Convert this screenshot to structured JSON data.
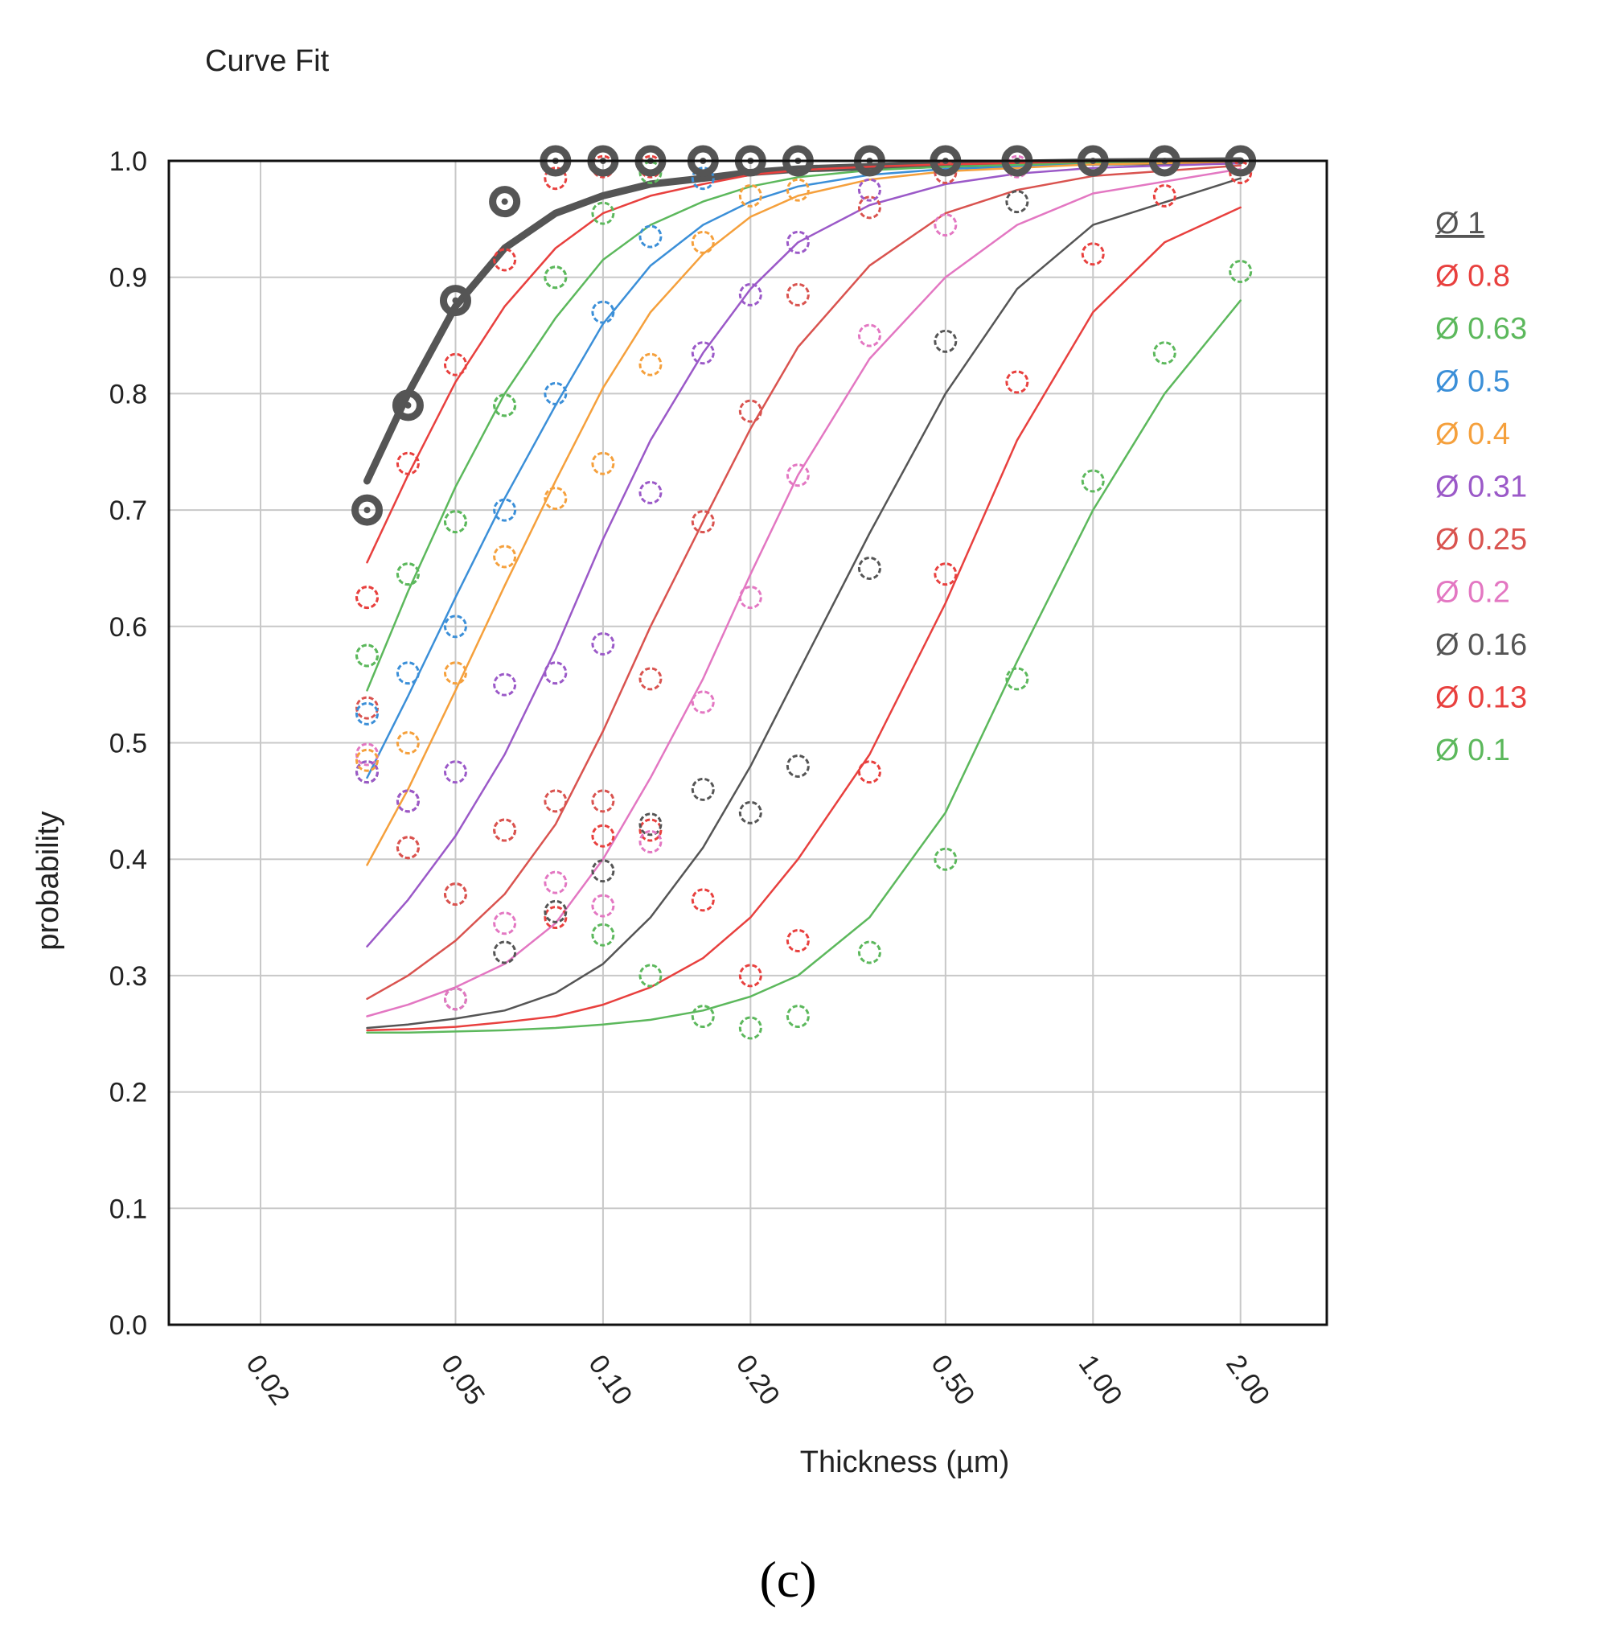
{
  "chart_data": {
    "type": "scatter",
    "title": "Curve Fit",
    "xlabel": "Thickness (µm)",
    "ylabel": "probability",
    "x_scale": "log",
    "xlim": [
      0.013,
      3.0
    ],
    "ylim": [
      0.0,
      1.0
    ],
    "grid": true,
    "legend_position": "right",
    "x_ticks": [
      {
        "value": 0.02,
        "label": "0.02"
      },
      {
        "value": 0.05,
        "label": "0.05"
      },
      {
        "value": 0.1,
        "label": "0.10"
      },
      {
        "value": 0.2,
        "label": "0.20"
      },
      {
        "value": 0.5,
        "label": "0.50"
      },
      {
        "value": 1.0,
        "label": "1.00"
      },
      {
        "value": 2.0,
        "label": "2.00"
      }
    ],
    "y_ticks": [
      {
        "value": 0.0,
        "label": "0.0"
      },
      {
        "value": 0.1,
        "label": "0.1"
      },
      {
        "value": 0.2,
        "label": "0.2"
      },
      {
        "value": 0.3,
        "label": "0.3"
      },
      {
        "value": 0.4,
        "label": "0.4"
      },
      {
        "value": 0.5,
        "label": "0.5"
      },
      {
        "value": 0.6,
        "label": "0.6"
      },
      {
        "value": 0.7,
        "label": "0.7"
      },
      {
        "value": 0.8,
        "label": "0.8"
      },
      {
        "value": 0.9,
        "label": "0.9"
      },
      {
        "value": 1.0,
        "label": "1.0"
      }
    ],
    "series": [
      {
        "name": "Ø 1",
        "color": "#555555",
        "bold": true,
        "x": [
          0.033,
          0.04,
          0.05,
          0.063,
          0.08,
          0.1,
          0.125,
          0.16,
          0.2,
          0.25,
          0.35,
          0.5,
          0.7,
          1.0,
          1.4,
          2.0
        ],
        "y": [
          0.7,
          0.79,
          0.88,
          0.965,
          1.0,
          1.0,
          1.0,
          1.0,
          1.0,
          1.0,
          1.0,
          1.0,
          1.0,
          1.0,
          1.0,
          1.0
        ],
        "fit_x": [
          0.033,
          0.04,
          0.05,
          0.063,
          0.08,
          0.1,
          0.125,
          0.16,
          0.2,
          0.25,
          0.35,
          0.5,
          0.7,
          1.0,
          2.0
        ],
        "fit_y": [
          0.725,
          0.8,
          0.875,
          0.925,
          0.955,
          0.97,
          0.98,
          0.985,
          0.99,
          0.993,
          0.995,
          0.997,
          0.998,
          0.999,
          1.0
        ]
      },
      {
        "name": "Ø 0.8",
        "color": "#e8403e",
        "x": [
          0.033,
          0.04,
          0.05,
          0.063,
          0.08,
          0.1,
          0.125,
          0.16,
          0.2,
          0.25,
          0.35,
          0.5,
          0.7,
          1.0,
          1.4,
          2.0
        ],
        "y": [
          0.625,
          0.74,
          0.825,
          0.915,
          0.985,
          0.995,
          0.995,
          1.0,
          1.0,
          1.0,
          1.0,
          1.0,
          1.0,
          1.0,
          1.0,
          1.0
        ],
        "fit_x": [
          0.033,
          0.04,
          0.05,
          0.063,
          0.08,
          0.1,
          0.125,
          0.16,
          0.2,
          0.25,
          0.35,
          0.5,
          1.0,
          2.0
        ],
        "fit_y": [
          0.655,
          0.73,
          0.81,
          0.875,
          0.925,
          0.955,
          0.97,
          0.98,
          0.988,
          0.992,
          0.995,
          0.997,
          0.999,
          1.0
        ]
      },
      {
        "name": "Ø 0.63",
        "color": "#5cb85c",
        "x": [
          0.033,
          0.04,
          0.05,
          0.063,
          0.08,
          0.1,
          0.125,
          0.16,
          0.2,
          0.25,
          0.35,
          0.5,
          0.7,
          1.0,
          1.4,
          2.0
        ],
        "y": [
          0.575,
          0.645,
          0.69,
          0.79,
          0.9,
          0.955,
          0.99,
          1.0,
          1.0,
          1.0,
          1.0,
          1.0,
          1.0,
          1.0,
          1.0,
          1.0
        ],
        "fit_x": [
          0.033,
          0.04,
          0.05,
          0.063,
          0.08,
          0.1,
          0.125,
          0.16,
          0.2,
          0.25,
          0.35,
          0.5,
          1.0,
          2.0
        ],
        "fit_y": [
          0.545,
          0.63,
          0.72,
          0.8,
          0.865,
          0.915,
          0.945,
          0.965,
          0.978,
          0.986,
          0.992,
          0.995,
          0.998,
          0.999
        ]
      },
      {
        "name": "Ø 0.5",
        "color": "#3b8fd8",
        "x": [
          0.033,
          0.04,
          0.05,
          0.063,
          0.08,
          0.1,
          0.125,
          0.16,
          0.2,
          0.25,
          0.35,
          0.5,
          0.7,
          1.0,
          1.4,
          2.0
        ],
        "y": [
          0.525,
          0.56,
          0.6,
          0.7,
          0.8,
          0.87,
          0.935,
          0.985,
          1.0,
          1.0,
          1.0,
          1.0,
          1.0,
          1.0,
          1.0,
          1.0
        ],
        "fit_x": [
          0.033,
          0.04,
          0.05,
          0.063,
          0.08,
          0.1,
          0.125,
          0.16,
          0.2,
          0.25,
          0.35,
          0.5,
          1.0,
          2.0
        ],
        "fit_y": [
          0.47,
          0.54,
          0.625,
          0.71,
          0.79,
          0.86,
          0.91,
          0.945,
          0.965,
          0.978,
          0.988,
          0.993,
          0.997,
          0.999
        ]
      },
      {
        "name": "Ø 0.4",
        "color": "#f5a03c",
        "x": [
          0.033,
          0.04,
          0.05,
          0.063,
          0.08,
          0.1,
          0.125,
          0.16,
          0.2,
          0.25,
          0.35,
          0.5,
          0.7,
          1.0,
          1.4,
          2.0
        ],
        "y": [
          0.485,
          0.5,
          0.56,
          0.66,
          0.71,
          0.74,
          0.825,
          0.93,
          0.97,
          0.975,
          1.0,
          1.0,
          1.0,
          1.0,
          1.0,
          1.0
        ],
        "fit_x": [
          0.033,
          0.04,
          0.05,
          0.063,
          0.08,
          0.1,
          0.125,
          0.16,
          0.2,
          0.25,
          0.35,
          0.5,
          1.0,
          2.0
        ],
        "fit_y": [
          0.395,
          0.46,
          0.545,
          0.635,
          0.725,
          0.805,
          0.87,
          0.92,
          0.952,
          0.97,
          0.984,
          0.991,
          0.997,
          0.999
        ]
      },
      {
        "name": "Ø 0.31",
        "color": "#9b59c8",
        "x": [
          0.033,
          0.04,
          0.05,
          0.063,
          0.08,
          0.1,
          0.125,
          0.16,
          0.2,
          0.25,
          0.35,
          0.5,
          0.7,
          1.0,
          1.4,
          2.0
        ],
        "y": [
          0.475,
          0.45,
          0.475,
          0.55,
          0.56,
          0.585,
          0.715,
          0.835,
          0.885,
          0.93,
          0.975,
          1.0,
          1.0,
          1.0,
          1.0,
          1.0
        ],
        "fit_x": [
          0.033,
          0.04,
          0.05,
          0.063,
          0.08,
          0.1,
          0.125,
          0.16,
          0.2,
          0.25,
          0.35,
          0.5,
          0.7,
          1.0,
          2.0
        ],
        "fit_y": [
          0.325,
          0.365,
          0.42,
          0.49,
          0.58,
          0.675,
          0.76,
          0.835,
          0.89,
          0.93,
          0.962,
          0.98,
          0.989,
          0.994,
          0.998
        ]
      },
      {
        "name": "Ø 0.25",
        "color": "#d9534f",
        "x": [
          0.033,
          0.04,
          0.05,
          0.063,
          0.08,
          0.1,
          0.125,
          0.16,
          0.2,
          0.25,
          0.35,
          0.5,
          0.7,
          1.0,
          1.4,
          2.0
        ],
        "y": [
          0.53,
          0.41,
          0.37,
          0.425,
          0.45,
          0.45,
          0.555,
          0.69,
          0.785,
          0.885,
          0.96,
          0.99,
          1.0,
          1.0,
          1.0,
          1.0
        ],
        "fit_x": [
          0.033,
          0.04,
          0.05,
          0.063,
          0.08,
          0.1,
          0.125,
          0.16,
          0.2,
          0.25,
          0.35,
          0.5,
          0.7,
          1.0,
          2.0
        ],
        "fit_y": [
          0.28,
          0.3,
          0.33,
          0.37,
          0.43,
          0.51,
          0.6,
          0.69,
          0.77,
          0.84,
          0.91,
          0.955,
          0.975,
          0.987,
          0.996
        ]
      },
      {
        "name": "Ø 0.2",
        "color": "#e377c2",
        "x": [
          0.033,
          0.04,
          0.05,
          0.063,
          0.08,
          0.1,
          0.125,
          0.16,
          0.2,
          0.25,
          0.35,
          0.5,
          0.7,
          1.0,
          1.4,
          2.0
        ],
        "y": [
          0.49,
          0.45,
          0.28,
          0.345,
          0.38,
          0.36,
          0.415,
          0.535,
          0.625,
          0.73,
          0.85,
          0.945,
          0.995,
          1.0,
          1.0,
          1.0
        ],
        "fit_x": [
          0.033,
          0.04,
          0.05,
          0.063,
          0.08,
          0.1,
          0.125,
          0.16,
          0.2,
          0.25,
          0.35,
          0.5,
          0.7,
          1.0,
          2.0
        ],
        "fit_y": [
          0.265,
          0.275,
          0.29,
          0.31,
          0.345,
          0.4,
          0.47,
          0.555,
          0.645,
          0.73,
          0.83,
          0.9,
          0.945,
          0.972,
          0.993
        ]
      },
      {
        "name": "Ø 0.16",
        "color": "#555555",
        "x": [
          0.033,
          0.04,
          0.05,
          0.063,
          0.08,
          0.1,
          0.125,
          0.16,
          0.2,
          0.25,
          0.35,
          0.5,
          0.7,
          1.0,
          1.4,
          2.0
        ],
        "y": [
          0.475,
          0.45,
          0.28,
          0.32,
          0.355,
          0.39,
          0.43,
          0.46,
          0.44,
          0.48,
          0.65,
          0.845,
          0.965,
          1.0,
          1.0,
          1.0
        ],
        "fit_x": [
          0.033,
          0.04,
          0.05,
          0.063,
          0.08,
          0.1,
          0.125,
          0.16,
          0.2,
          0.25,
          0.35,
          0.5,
          0.7,
          1.0,
          2.0
        ],
        "fit_y": [
          0.255,
          0.258,
          0.263,
          0.27,
          0.285,
          0.31,
          0.35,
          0.41,
          0.48,
          0.56,
          0.68,
          0.8,
          0.89,
          0.945,
          0.985
        ]
      },
      {
        "name": "Ø 0.13",
        "color": "#e8403e",
        "x": [
          0.033,
          0.04,
          0.05,
          0.063,
          0.08,
          0.1,
          0.125,
          0.16,
          0.2,
          0.25,
          0.35,
          0.5,
          0.7,
          1.0,
          1.4,
          2.0
        ],
        "y": [
          0.625,
          0.41,
          0.37,
          0.425,
          0.35,
          0.42,
          0.425,
          0.365,
          0.3,
          0.33,
          0.475,
          0.645,
          0.81,
          0.92,
          0.97,
          0.99
        ],
        "fit_x": [
          0.033,
          0.04,
          0.05,
          0.063,
          0.08,
          0.1,
          0.125,
          0.16,
          0.2,
          0.25,
          0.35,
          0.5,
          0.7,
          1.0,
          1.4,
          2.0
        ],
        "fit_y": [
          0.253,
          0.254,
          0.256,
          0.26,
          0.265,
          0.275,
          0.29,
          0.315,
          0.35,
          0.4,
          0.49,
          0.62,
          0.76,
          0.87,
          0.93,
          0.96
        ]
      },
      {
        "name": "Ø 0.1",
        "color": "#5cb85c",
        "x": [
          0.033,
          0.04,
          0.05,
          0.063,
          0.08,
          0.1,
          0.125,
          0.16,
          0.2,
          0.25,
          0.35,
          0.5,
          0.7,
          1.0,
          1.4,
          2.0
        ],
        "y": [
          0.575,
          0.645,
          0.69,
          0.79,
          0.9,
          0.335,
          0.3,
          0.265,
          0.255,
          0.265,
          0.32,
          0.4,
          0.555,
          0.725,
          0.835,
          0.905
        ],
        "fit_x": [
          0.033,
          0.04,
          0.05,
          0.063,
          0.08,
          0.1,
          0.125,
          0.16,
          0.2,
          0.25,
          0.35,
          0.5,
          0.7,
          1.0,
          1.4,
          2.0
        ],
        "fit_y": [
          0.251,
          0.251,
          0.252,
          0.253,
          0.255,
          0.258,
          0.262,
          0.27,
          0.282,
          0.3,
          0.35,
          0.44,
          0.57,
          0.7,
          0.8,
          0.88
        ]
      }
    ]
  },
  "caption": "(c)"
}
